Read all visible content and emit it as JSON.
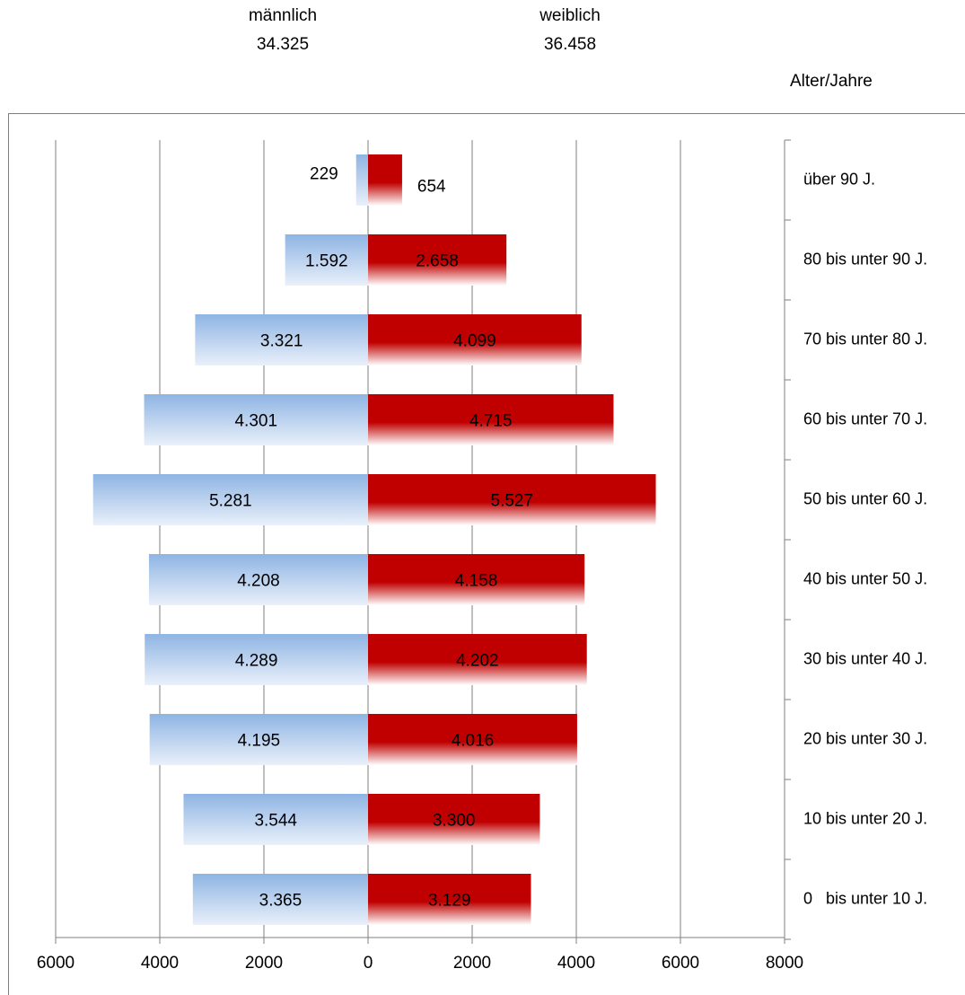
{
  "header": {
    "male_label": "männlich",
    "male_total": "34.325",
    "female_label": "weiblich",
    "female_total": "36.458"
  },
  "axis_title": "Alter/Jahre",
  "chart_data": {
    "type": "bar",
    "orientation": "horizontal",
    "subtype": "population-pyramid",
    "categories": [
      "über 90 J.",
      "80 bis unter 90 J.",
      "70 bis unter 80 J.",
      "60 bis unter 70 J.",
      "50 bis unter 60 J.",
      "40 bis unter 50 J.",
      "30 bis unter 40 J.",
      "20 bis unter 30 J.",
      "10 bis unter 20 J.",
      "0   bis unter 10 J."
    ],
    "series": [
      {
        "name": "männlich",
        "values": [
          229,
          1592,
          3321,
          4301,
          5281,
          4208,
          4289,
          4195,
          3544,
          3365
        ],
        "labels": [
          "229",
          "1.592",
          "3.321",
          "4.301",
          "5.281",
          "4.208",
          "4.289",
          "4.195",
          "3.544",
          "3.365"
        ]
      },
      {
        "name": "weiblich",
        "values": [
          654,
          2658,
          4099,
          4715,
          5527,
          4158,
          4202,
          4016,
          3300,
          3129
        ],
        "labels": [
          "654",
          "2.658",
          "4.099",
          "4.715",
          "5.527",
          "4.158",
          "4.202",
          "4.016",
          "3.300",
          "3.129"
        ]
      }
    ],
    "xlim": [
      -6000,
      8000
    ],
    "x_ticks": [
      -6000,
      -4000,
      -2000,
      0,
      2000,
      4000,
      6000,
      8000
    ],
    "x_tick_labels": [
      "6000",
      "4000",
      "2000",
      "0",
      "2000",
      "4000",
      "6000",
      "8000"
    ],
    "grid": true,
    "colors": {
      "male": "#8eb4e3",
      "male_light": "#e9f0fa",
      "female": "#c00000",
      "female_light": "#ffffff",
      "grid": "#7f7f7f"
    }
  }
}
